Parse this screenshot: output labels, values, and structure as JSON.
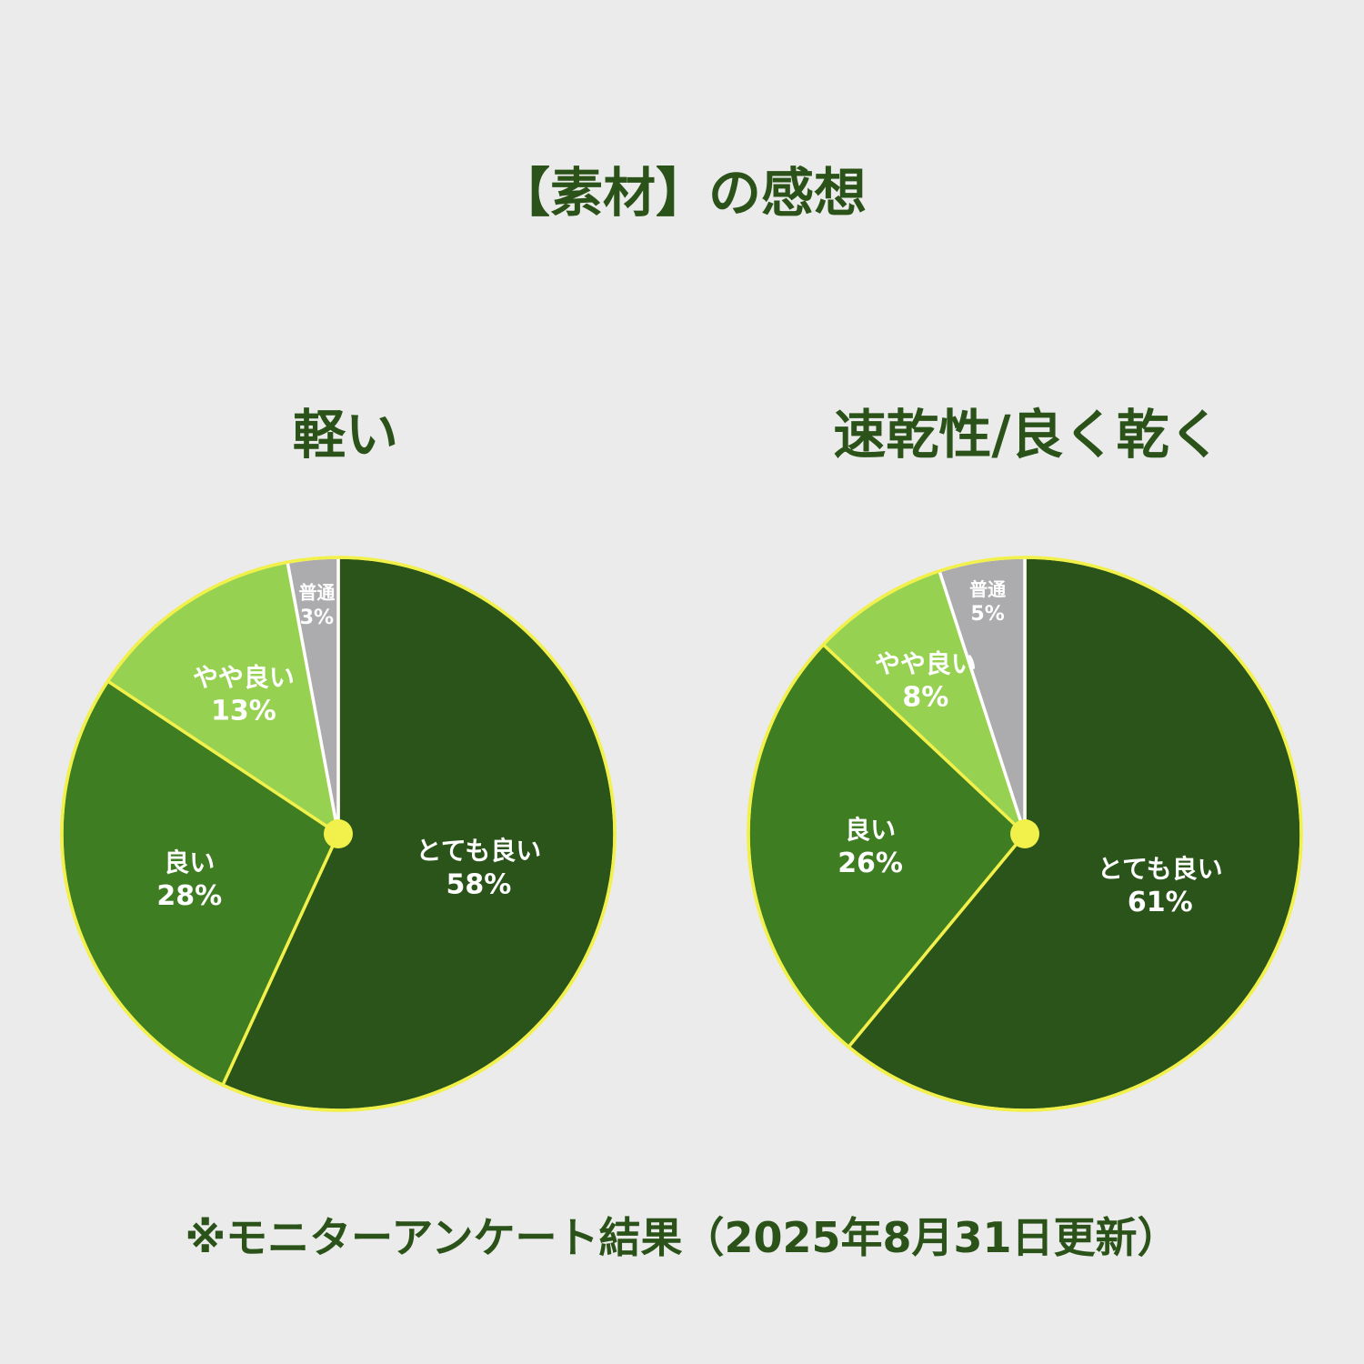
{
  "title": "【素材】の感想",
  "footnote": "※モニターアンケート結果（2025年8月31日更新）",
  "colors": {
    "background": "#ebebeb",
    "text": "#2a5219",
    "border": "#f2f04a",
    "center_dot": "#f2f04a"
  },
  "chart_data": [
    {
      "type": "pie",
      "title": "軽い",
      "slices": [
        {
          "label": "とても良い",
          "value": 58,
          "display": "58%",
          "color": "#2a5419"
        },
        {
          "label": "良い",
          "value": 28,
          "display": "28%",
          "color": "#3e7d22"
        },
        {
          "label": "やや良い",
          "value": 13,
          "display": "13%",
          "color": "#96d152"
        },
        {
          "label": "普通",
          "value": 3,
          "display": "3%",
          "color": "#acacae"
        }
      ]
    },
    {
      "type": "pie",
      "title": "速乾性/良く乾く",
      "slices": [
        {
          "label": "とても良い",
          "value": 61,
          "display": "61%",
          "color": "#2a5419"
        },
        {
          "label": "良い",
          "value": 26,
          "display": "26%",
          "color": "#3e7d22"
        },
        {
          "label": "やや良い",
          "value": 8,
          "display": "8%",
          "color": "#96d152"
        },
        {
          "label": "普通",
          "value": 5,
          "display": "5%",
          "color": "#acacae"
        }
      ]
    }
  ]
}
